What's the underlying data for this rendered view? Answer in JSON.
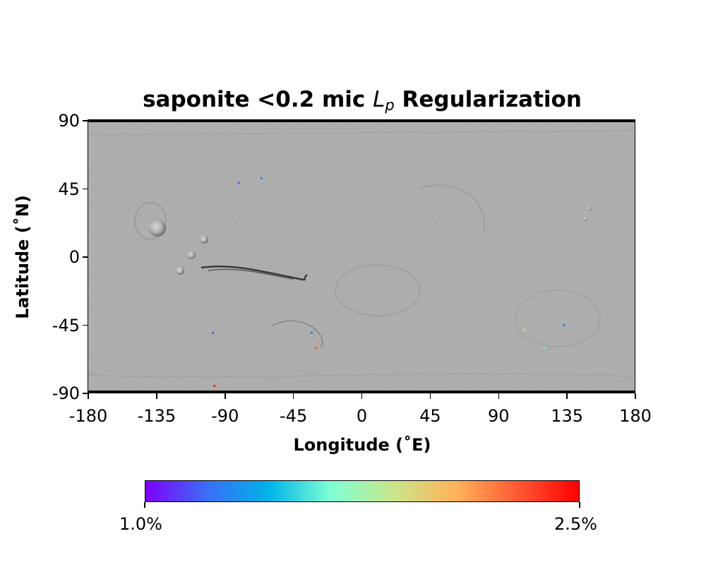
{
  "title": {
    "prefix": "saponite <0.2 mic ",
    "symbol": "L",
    "subscript": "p",
    "suffix": " Regularization"
  },
  "axes": {
    "xlabel": "Longitude (˚E)",
    "ylabel": "Latitude (˚N)",
    "xlim": [
      -180,
      180
    ],
    "ylim": [
      -90,
      90
    ],
    "xticks": [
      "-180",
      "-135",
      "-90",
      "-45",
      "0",
      "45",
      "90",
      "135",
      "180"
    ],
    "yticks": [
      "90",
      "45",
      "0",
      "-45",
      "-90"
    ]
  },
  "map": {
    "basemap": "grayscale-shaded-relief",
    "basemap_color": "#a8a8a8"
  },
  "colorbar": {
    "colormap": "rainbow",
    "colors": [
      "#7f00ff",
      "#3a6ef6",
      "#00b4e8",
      "#7fffd4",
      "#c8e68c",
      "#ffb45a",
      "#ff5a32",
      "#ff0000"
    ],
    "min_label": "1.0%",
    "max_label": "2.5%",
    "range": [
      1.0,
      2.5
    ]
  },
  "chart_data": {
    "type": "heatmap",
    "title": "saponite <0.2 mic Lp Regularization",
    "xlabel": "Longitude (˚E)",
    "ylabel": "Latitude (˚N)",
    "xlim": [
      -180,
      180
    ],
    "ylim": [
      -90,
      90
    ],
    "color_range": [
      1.0,
      2.5
    ],
    "color_unit": "%",
    "detections": [
      {
        "lon": -81,
        "lat": 49,
        "value": 1.2
      },
      {
        "lon": -66,
        "lat": 52,
        "value": 1.3
      },
      {
        "lon": -33,
        "lat": -50,
        "value": 1.25
      },
      {
        "lon": -30,
        "lat": -60,
        "value": 2.3
      },
      {
        "lon": -28,
        "lat": -57,
        "value": 2.2
      },
      {
        "lon": -98,
        "lat": -50,
        "value": 1.2
      },
      {
        "lon": -97,
        "lat": -85,
        "value": 2.4
      },
      {
        "lon": -155,
        "lat": -89,
        "value": 1.1
      },
      {
        "lon": 107,
        "lat": -48,
        "value": 1.9
      },
      {
        "lon": 133,
        "lat": -45,
        "value": 1.3
      },
      {
        "lon": 120,
        "lat": -60,
        "value": 1.6
      }
    ]
  }
}
